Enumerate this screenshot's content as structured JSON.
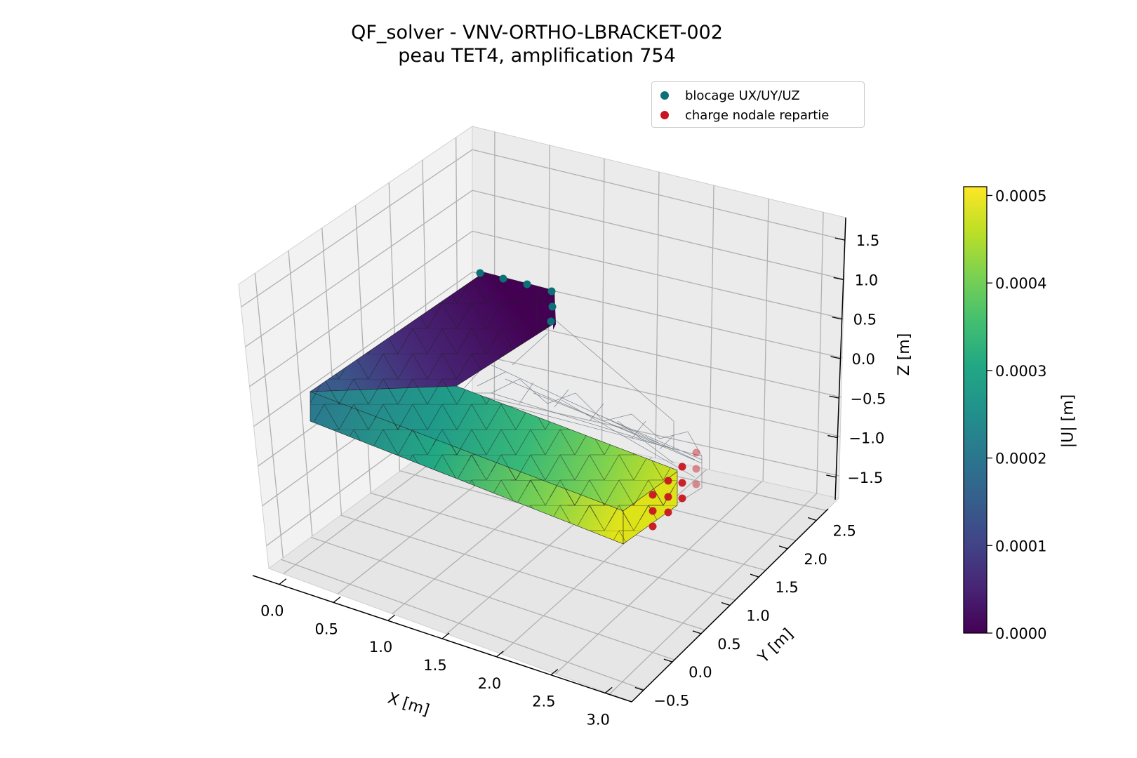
{
  "title_lines": [
    "QF_solver - VNV-ORTHO-LBRACKET-002",
    "peau TET4, amplification 754"
  ],
  "legend": [
    {
      "label": "blocage UX/UY/UZ",
      "color": "#0d7077"
    },
    {
      "label": "charge nodale repartie",
      "color": "#c81521"
    }
  ],
  "colorbar": {
    "label": "|U| [m]",
    "ticks": [
      "0.0000",
      "0.0001",
      "0.0002",
      "0.0003",
      "0.0004",
      "0.0005"
    ],
    "vmin": 0.0,
    "vmax": 0.00051,
    "colormap": "viridis"
  },
  "chart_data": {
    "type": "3d-mesh",
    "title": "QF_solver - VNV-ORTHO-LBRACKET-002\npeau TET4, amplification 754",
    "xlabel": "X [m]",
    "ylabel": "Y [m]",
    "zlabel": "Z [m]",
    "xticks": [
      "0.0",
      "0.5",
      "1.0",
      "1.5",
      "2.0",
      "2.5",
      "3.0"
    ],
    "yticks": [
      "−0.5",
      "0.0",
      "0.5",
      "1.0",
      "1.5",
      "2.0",
      "2.5"
    ],
    "zticks": [
      "−1.5",
      "−1.0",
      "−0.5",
      "0.0",
      "0.5",
      "1.0",
      "1.5"
    ],
    "xlim": [
      -0.2,
      3.2
    ],
    "ylim": [
      -0.7,
      2.9
    ],
    "zlim": [
      -1.8,
      1.8
    ],
    "grid": true,
    "legend_position": "top-right",
    "series": [
      {
        "name": "blocage UX/UY/UZ",
        "type": "scatter",
        "color": "#0d7077"
      },
      {
        "name": "charge nodale repartie",
        "type": "scatter",
        "color": "#c81521"
      }
    ],
    "field": {
      "name": "|U| [m]",
      "min": 0.0,
      "max": 0.00051
    }
  }
}
